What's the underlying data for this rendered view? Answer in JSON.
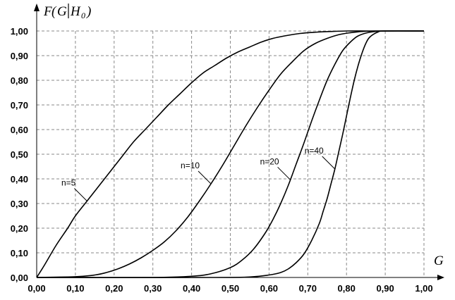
{
  "chart_data": {
    "type": "line",
    "title": "",
    "xlabel": "G",
    "ylabel": {
      "main": "F",
      "arg": "G",
      "cond": "H",
      "sub": "0"
    },
    "xlim": [
      0,
      1
    ],
    "ylim": [
      0,
      1
    ],
    "x_ticks": [
      "0,00",
      "0,10",
      "0,20",
      "0,30",
      "0,40",
      "0,50",
      "0,60",
      "0,70",
      "0,80",
      "0,90",
      "1,00"
    ],
    "y_ticks": [
      "0,00",
      "0,10",
      "0,20",
      "0,30",
      "0,40",
      "0,50",
      "0,60",
      "0,70",
      "0,80",
      "0,90",
      "1,00"
    ],
    "grid": true,
    "series": [
      {
        "name": "n=5",
        "x": [
          0,
          0.02,
          0.05,
          0.08,
          0.1,
          0.13,
          0.16,
          0.19,
          0.22,
          0.25,
          0.28,
          0.31,
          0.34,
          0.37,
          0.4,
          0.43,
          0.46,
          0.49,
          0.52,
          0.55,
          0.58,
          0.61,
          0.64,
          0.68,
          0.72,
          0.76,
          0.8,
          0.85,
          0.9,
          1.0
        ],
        "y": [
          0,
          0.05,
          0.13,
          0.2,
          0.25,
          0.31,
          0.37,
          0.43,
          0.49,
          0.55,
          0.6,
          0.65,
          0.7,
          0.745,
          0.79,
          0.83,
          0.86,
          0.89,
          0.915,
          0.935,
          0.955,
          0.97,
          0.98,
          0.99,
          0.995,
          0.998,
          1.0,
          1.0,
          1.0,
          1.0
        ],
        "label_at": 0.13
      },
      {
        "name": "n=10",
        "x": [
          0,
          0.1,
          0.15,
          0.18,
          0.21,
          0.24,
          0.27,
          0.3,
          0.33,
          0.36,
          0.39,
          0.42,
          0.45,
          0.48,
          0.51,
          0.54,
          0.57,
          0.6,
          0.63,
          0.66,
          0.69,
          0.72,
          0.75,
          0.78,
          0.81,
          0.84,
          0.88,
          1.0
        ],
        "y": [
          0,
          0.003,
          0.01,
          0.02,
          0.035,
          0.055,
          0.08,
          0.11,
          0.145,
          0.19,
          0.245,
          0.31,
          0.38,
          0.455,
          0.535,
          0.615,
          0.69,
          0.76,
          0.825,
          0.875,
          0.92,
          0.95,
          0.97,
          0.985,
          0.993,
          0.998,
          1.0,
          1.0
        ],
        "label_at": 0.45
      },
      {
        "name": "n=20",
        "x": [
          0,
          0.3,
          0.4,
          0.45,
          0.5,
          0.53,
          0.56,
          0.59,
          0.61,
          0.63,
          0.65,
          0.67,
          0.69,
          0.71,
          0.73,
          0.75,
          0.77,
          0.79,
          0.81,
          0.83,
          0.86,
          0.9,
          1.0
        ],
        "y": [
          0,
          0.0,
          0.005,
          0.015,
          0.04,
          0.07,
          0.115,
          0.18,
          0.235,
          0.3,
          0.375,
          0.46,
          0.545,
          0.635,
          0.72,
          0.8,
          0.865,
          0.92,
          0.955,
          0.98,
          0.995,
          1.0,
          1.0
        ],
        "label_at": 0.655
      },
      {
        "name": "n=40",
        "x": [
          0,
          0.45,
          0.55,
          0.6,
          0.63,
          0.65,
          0.67,
          0.69,
          0.71,
          0.73,
          0.74,
          0.75,
          0.76,
          0.77,
          0.78,
          0.79,
          0.8,
          0.81,
          0.82,
          0.83,
          0.84,
          0.85,
          0.86,
          0.88,
          0.9,
          1.0
        ],
        "y": [
          0,
          0.0,
          0.002,
          0.01,
          0.02,
          0.035,
          0.06,
          0.095,
          0.15,
          0.22,
          0.27,
          0.32,
          0.38,
          0.44,
          0.51,
          0.58,
          0.655,
          0.73,
          0.8,
          0.86,
          0.91,
          0.95,
          0.975,
          0.995,
          1.0,
          1.0
        ],
        "label_at": 0.77
      }
    ]
  }
}
